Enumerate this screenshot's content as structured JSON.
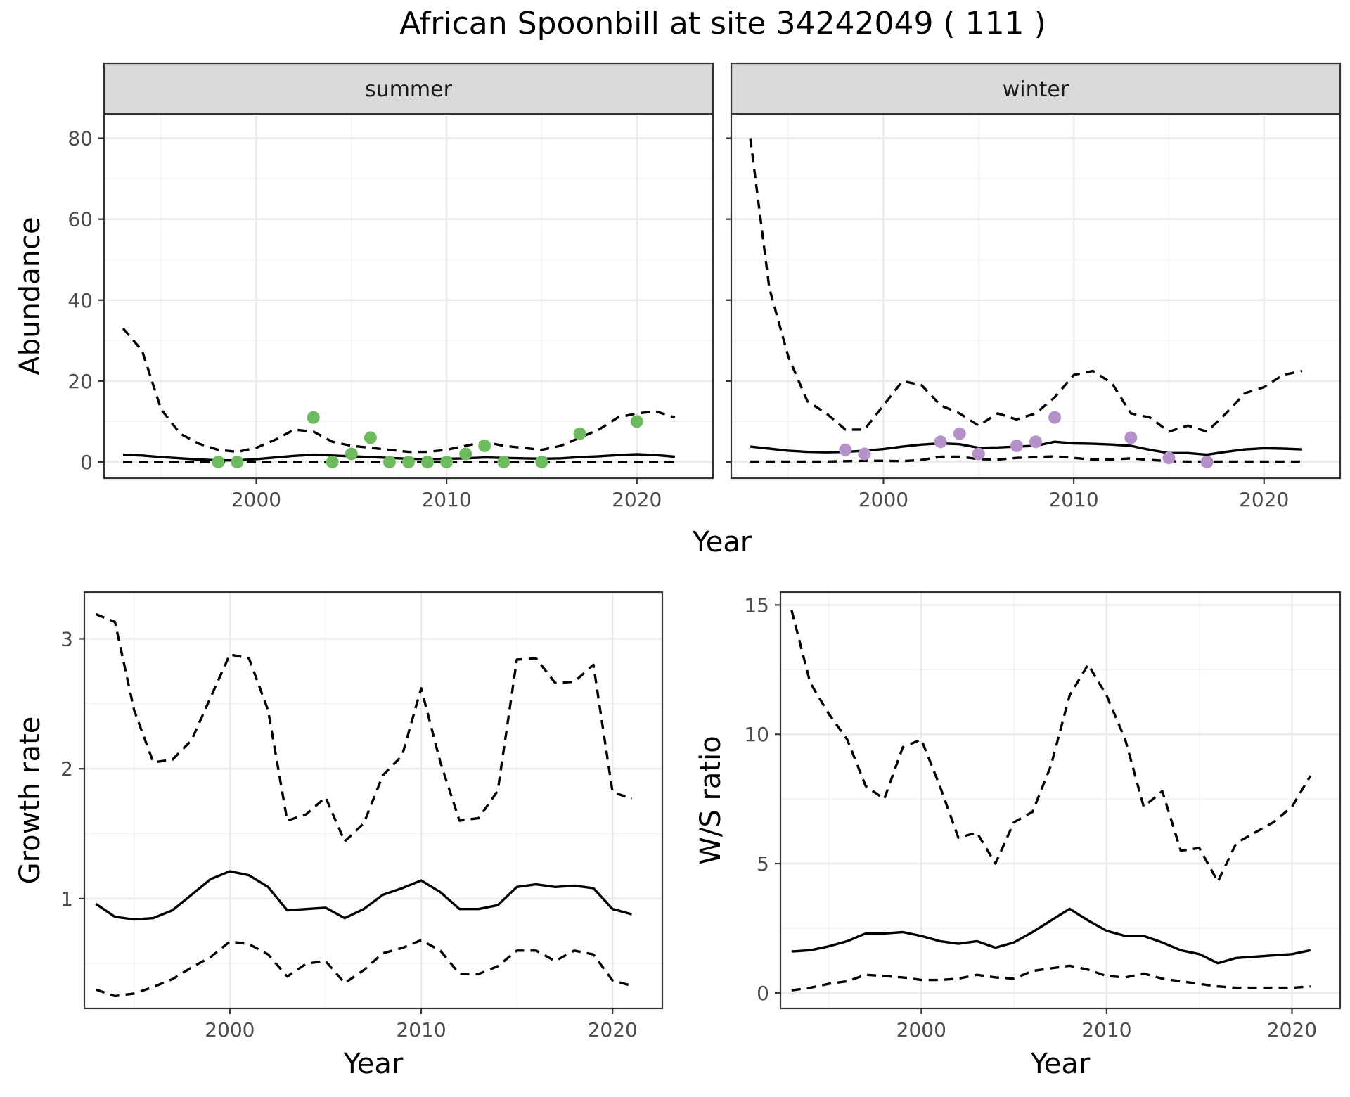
{
  "title": "African Spoonbill at site 34242049 ( 111 )",
  "chart_data": [
    {
      "type": "line",
      "panel": "abundance-summer",
      "strip": "summer",
      "xlabel": "Year",
      "ylabel": "Abundance",
      "xlim": [
        1992,
        2024
      ],
      "ylim": [
        -4,
        86
      ],
      "xticks": [
        2000,
        2010,
        2020
      ],
      "yticks": [
        0,
        20,
        40,
        60,
        80
      ],
      "grid": true,
      "point_color": "#6dbb5e",
      "x": [
        1993,
        1994,
        1995,
        1996,
        1997,
        1998,
        1999,
        2000,
        2001,
        2002,
        2003,
        2004,
        2005,
        2006,
        2007,
        2008,
        2009,
        2010,
        2011,
        2012,
        2013,
        2014,
        2015,
        2016,
        2017,
        2018,
        2019,
        2020,
        2021,
        2022
      ],
      "series": [
        {
          "style": "solid",
          "values": [
            1.8,
            1.6,
            1.2,
            0.9,
            0.6,
            0.4,
            0.4,
            0.7,
            1.1,
            1.5,
            1.8,
            1.6,
            1.4,
            1.2,
            1.0,
            0.8,
            0.7,
            0.8,
            0.9,
            1.1,
            1.0,
            0.9,
            0.8,
            0.9,
            1.2,
            1.4,
            1.7,
            1.9,
            1.7,
            1.3
          ]
        },
        {
          "style": "dashed",
          "values": [
            33,
            27.5,
            13,
            7,
            4.5,
            3,
            2.5,
            3.5,
            5.5,
            8,
            7.5,
            5,
            4,
            3.5,
            3,
            2.5,
            2.5,
            3,
            4,
            5,
            4,
            3.5,
            3,
            4,
            6,
            8,
            11,
            12,
            12.5,
            11
          ]
        },
        {
          "style": "dashed",
          "values": [
            0,
            0,
            0,
            0,
            0,
            0,
            0,
            0,
            0,
            0,
            0,
            0,
            0,
            0,
            0,
            0,
            0,
            0,
            0,
            0,
            0,
            0,
            0,
            0,
            0,
            0,
            0,
            0,
            0,
            0
          ]
        }
      ],
      "points": {
        "x": [
          1998,
          1999,
          2003,
          2004,
          2005,
          2006,
          2007,
          2008,
          2009,
          2010,
          2011,
          2012,
          2013,
          2015,
          2017,
          2020
        ],
        "y": [
          0,
          0,
          11,
          0,
          2,
          6,
          0,
          0,
          0,
          0,
          2,
          4,
          0,
          0,
          7,
          10
        ]
      }
    },
    {
      "type": "line",
      "panel": "abundance-winter",
      "strip": "winter",
      "xlabel": "Year",
      "ylabel": "",
      "xlim": [
        1992,
        2024
      ],
      "ylim": [
        -4,
        86
      ],
      "xticks": [
        2000,
        2010,
        2020
      ],
      "yticks": [
        0,
        20,
        40,
        60,
        80
      ],
      "grid": true,
      "point_color": "#b491c8",
      "x": [
        1993,
        1994,
        1995,
        1996,
        1997,
        1998,
        1999,
        2000,
        2001,
        2002,
        2003,
        2004,
        2005,
        2006,
        2007,
        2008,
        2009,
        2010,
        2011,
        2012,
        2013,
        2014,
        2015,
        2016,
        2017,
        2018,
        2019,
        2020,
        2021,
        2022
      ],
      "series": [
        {
          "style": "solid",
          "values": [
            3.8,
            3.3,
            2.8,
            2.5,
            2.4,
            2.5,
            2.8,
            3.2,
            3.8,
            4.3,
            4.6,
            4.4,
            3.5,
            3.6,
            3.8,
            4.0,
            5.0,
            4.6,
            4.5,
            4.3,
            4.0,
            3.0,
            2.2,
            2.2,
            1.8,
            2.5,
            3.1,
            3.4,
            3.3,
            3.1
          ]
        },
        {
          "style": "dashed",
          "values": [
            80,
            43,
            26,
            15,
            12,
            8,
            8,
            14,
            20,
            19,
            14,
            12,
            9,
            12,
            10.5,
            12,
            16,
            21.5,
            22.5,
            19.5,
            12,
            11,
            7.5,
            9,
            7.5,
            12,
            17,
            18.5,
            21.5,
            22.5
          ]
        },
        {
          "style": "dashed",
          "values": [
            0.1,
            0.1,
            0.1,
            0.1,
            0.1,
            0.2,
            0.3,
            0.3,
            0.2,
            0.5,
            1.3,
            1.3,
            0.7,
            0.6,
            1.0,
            1.2,
            1.4,
            1.0,
            0.6,
            0.6,
            0.9,
            0.5,
            0.2,
            0.1,
            0.1,
            0.1,
            0.1,
            0.1,
            0.1,
            0.1
          ]
        }
      ],
      "points": {
        "x": [
          1998,
          1999,
          2003,
          2004,
          2005,
          2007,
          2008,
          2009,
          2013,
          2015,
          2017
        ],
        "y": [
          3,
          2,
          5,
          7,
          2,
          4,
          5,
          11,
          6,
          1,
          0
        ]
      }
    },
    {
      "type": "line",
      "panel": "growth-rate",
      "xlabel": "Year",
      "ylabel": "Growth rate",
      "xlim": [
        1992.4,
        2022.6
      ],
      "ylim": [
        0.155,
        3.36
      ],
      "xticks": [
        2000,
        2010,
        2020
      ],
      "yticks": [
        1,
        2,
        3
      ],
      "grid": true,
      "x": [
        1993,
        1994,
        1995,
        1996,
        1997,
        1998,
        1999,
        2000,
        2001,
        2002,
        2003,
        2004,
        2005,
        2006,
        2007,
        2008,
        2009,
        2010,
        2011,
        2012,
        2013,
        2014,
        2015,
        2016,
        2017,
        2018,
        2019,
        2020,
        2021
      ],
      "series": [
        {
          "style": "solid",
          "values": [
            0.96,
            0.86,
            0.84,
            0.85,
            0.91,
            1.03,
            1.15,
            1.21,
            1.18,
            1.09,
            0.91,
            0.92,
            0.93,
            0.85,
            0.92,
            1.03,
            1.08,
            1.14,
            1.05,
            0.92,
            0.92,
            0.95,
            1.09,
            1.11,
            1.09,
            1.1,
            1.08,
            0.92,
            0.88
          ]
        },
        {
          "style": "dashed",
          "values": [
            3.19,
            3.13,
            2.45,
            2.05,
            2.07,
            2.22,
            2.55,
            2.88,
            2.85,
            2.45,
            1.6,
            1.65,
            1.78,
            1.44,
            1.58,
            1.95,
            2.1,
            2.62,
            2.05,
            1.6,
            1.62,
            1.83,
            2.84,
            2.85,
            2.66,
            2.67,
            2.8,
            1.82,
            1.77
          ]
        },
        {
          "style": "dashed",
          "values": [
            0.3,
            0.25,
            0.27,
            0.32,
            0.38,
            0.47,
            0.55,
            0.67,
            0.65,
            0.57,
            0.4,
            0.5,
            0.52,
            0.35,
            0.45,
            0.58,
            0.62,
            0.68,
            0.6,
            0.42,
            0.42,
            0.48,
            0.6,
            0.6,
            0.52,
            0.6,
            0.57,
            0.37,
            0.33
          ]
        }
      ]
    },
    {
      "type": "line",
      "panel": "ws-ratio",
      "xlabel": "Year",
      "ylabel": "W/S ratio",
      "xlim": [
        1992.4,
        2022.6
      ],
      "ylim": [
        -0.6,
        15.5
      ],
      "xticks": [
        2000,
        2010,
        2020
      ],
      "yticks": [
        0,
        5,
        10,
        15
      ],
      "grid": true,
      "x": [
        1993,
        1994,
        1995,
        1996,
        1997,
        1998,
        1999,
        2000,
        2001,
        2002,
        2003,
        2004,
        2005,
        2006,
        2007,
        2008,
        2009,
        2010,
        2011,
        2012,
        2013,
        2014,
        2015,
        2016,
        2017,
        2018,
        2019,
        2020,
        2021
      ],
      "series": [
        {
          "style": "solid",
          "values": [
            1.6,
            1.65,
            1.8,
            2.0,
            2.3,
            2.3,
            2.35,
            2.2,
            2.0,
            1.9,
            2.0,
            1.75,
            1.95,
            2.35,
            2.8,
            3.25,
            2.8,
            2.4,
            2.2,
            2.2,
            1.95,
            1.65,
            1.5,
            1.15,
            1.35,
            1.4,
            1.45,
            1.5,
            1.65
          ]
        },
        {
          "style": "dashed",
          "values": [
            14.8,
            12.0,
            10.8,
            9.8,
            8.0,
            7.5,
            9.5,
            9.8,
            8.0,
            6.0,
            6.2,
            5.0,
            6.6,
            7.0,
            8.8,
            11.5,
            12.7,
            11.5,
            9.8,
            7.2,
            7.8,
            5.5,
            5.6,
            4.3,
            5.8,
            6.2,
            6.6,
            7.2,
            8.4
          ]
        },
        {
          "style": "dashed",
          "values": [
            0.1,
            0.2,
            0.35,
            0.45,
            0.7,
            0.65,
            0.6,
            0.5,
            0.5,
            0.55,
            0.7,
            0.6,
            0.55,
            0.85,
            0.95,
            1.05,
            0.9,
            0.65,
            0.6,
            0.75,
            0.55,
            0.45,
            0.35,
            0.25,
            0.2,
            0.2,
            0.2,
            0.2,
            0.25
          ]
        }
      ]
    }
  ]
}
